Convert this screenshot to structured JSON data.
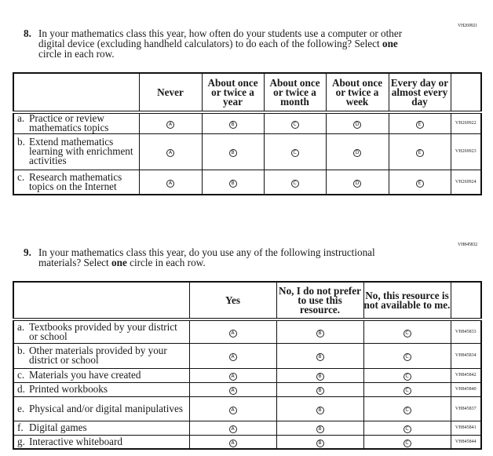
{
  "q8": {
    "code": "VH269921",
    "number": "8.",
    "text_before": "In your mathematics class this year, how often do your students use a computer or other digital device (excluding handheld calculators) to do each of the following? Select ",
    "text_bold": "one",
    "text_after": " circle in each row.",
    "columns": [
      "Never",
      "About once or twice a year",
      "About once or twice a month",
      "About once or twice a week",
      "Every day or almost every day"
    ],
    "bubbles": [
      "A",
      "B",
      "C",
      "D",
      "E"
    ],
    "rows": [
      {
        "letter": "a.",
        "label": "Practice or review mathematics topics",
        "code": "VH269922"
      },
      {
        "letter": "b.",
        "label": "Extend mathematics learning with enrichment activities",
        "code": "VH269923"
      },
      {
        "letter": "c.",
        "label": "Research mathematics topics on the Internet",
        "code": "VH269924"
      }
    ]
  },
  "q9": {
    "code": "VH845832",
    "number": "9.",
    "text_before": "In your mathematics class this year, do you use any of the following instructional materials? Select ",
    "text_bold": "one",
    "text_after": " circle in each row.",
    "columns": [
      "Yes",
      "No, I do not prefer to use this resource.",
      "No, this resource is not available to me."
    ],
    "bubbles": [
      "A",
      "B",
      "C"
    ],
    "rows": [
      {
        "letter": "a.",
        "label": "Textbooks provided by your district or school",
        "code": "VH845833"
      },
      {
        "letter": "b.",
        "label": "Other materials provided by your district or school",
        "code": "VH845834"
      },
      {
        "letter": "c.",
        "label": "Materials you have created",
        "code": "VH845842"
      },
      {
        "letter": "d.",
        "label": "Printed workbooks",
        "code": "VH845840"
      },
      {
        "letter": "e.",
        "label": "Physical and/or digital manipulatives",
        "code": "VH845837"
      },
      {
        "letter": "f.",
        "label": "Digital games",
        "code": "VH845841"
      },
      {
        "letter": "g.",
        "label": "Interactive whiteboard",
        "code": "VH845844"
      }
    ]
  }
}
